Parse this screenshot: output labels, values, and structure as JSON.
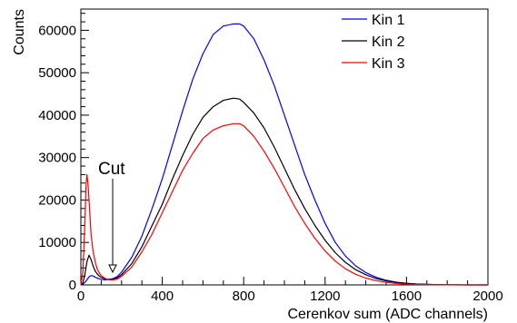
{
  "chart_data": {
    "type": "line",
    "title": "",
    "xlabel": "Cerenkov sum (ADC channels)",
    "ylabel": "Counts",
    "xlim": [
      0,
      2000
    ],
    "ylim": [
      0,
      65000
    ],
    "x_ticks": [
      0,
      400,
      800,
      1200,
      1600,
      2000
    ],
    "x_tick_labels": [
      "0",
      "400",
      "800",
      "1200",
      "1600",
      "2000"
    ],
    "y_ticks": [
      0,
      10000,
      20000,
      30000,
      40000,
      50000,
      60000
    ],
    "y_tick_labels": [
      "0",
      "10000",
      "20000",
      "30000",
      "40000",
      "50000",
      "60000"
    ],
    "grid": false,
    "legend_position": "top-right",
    "series": [
      {
        "name": "Kin 1",
        "color": "#0000ff",
        "x": [
          0,
          10,
          20,
          30,
          40,
          50,
          60,
          80,
          100,
          120,
          140,
          160,
          180,
          200,
          250,
          300,
          350,
          400,
          450,
          500,
          550,
          600,
          650,
          700,
          750,
          780,
          800,
          850,
          900,
          950,
          1000,
          1050,
          1100,
          1150,
          1200,
          1250,
          1300,
          1350,
          1400,
          1450,
          1500,
          1550,
          1600,
          1650,
          1700,
          1750,
          1800,
          1850,
          1900,
          1950,
          2000
        ],
        "y": [
          0,
          200,
          600,
          1200,
          1900,
          2200,
          2100,
          1600,
          1300,
          1200,
          1300,
          1500,
          2000,
          3000,
          6500,
          11500,
          18000,
          25000,
          33000,
          41000,
          48500,
          54500,
          59000,
          61000,
          61500,
          61500,
          61000,
          58000,
          53000,
          47000,
          40000,
          33000,
          26000,
          20000,
          14500,
          10000,
          6800,
          4500,
          2900,
          1800,
          1100,
          650,
          380,
          220,
          120,
          60,
          30,
          15,
          8,
          4,
          0
        ]
      },
      {
        "name": "Kin 2",
        "color": "#000000",
        "x": [
          0,
          10,
          20,
          30,
          40,
          50,
          60,
          70,
          80,
          90,
          100,
          120,
          140,
          160,
          180,
          200,
          250,
          300,
          350,
          400,
          450,
          500,
          550,
          600,
          650,
          700,
          750,
          780,
          800,
          850,
          900,
          950,
          1000,
          1050,
          1100,
          1150,
          1200,
          1250,
          1300,
          1350,
          1400,
          1450,
          1500,
          1550,
          1600,
          1650,
          1700,
          1750,
          1800,
          1900,
          2000
        ],
        "y": [
          0,
          500,
          2500,
          5500,
          7000,
          6000,
          4500,
          3300,
          2600,
          2100,
          1800,
          1400,
          1300,
          1400,
          1700,
          2400,
          5000,
          9000,
          14000,
          19000,
          25000,
          30500,
          35500,
          39500,
          42000,
          43500,
          44000,
          43800,
          43000,
          40500,
          37000,
          32500,
          27500,
          22500,
          18000,
          14000,
          10500,
          7600,
          5300,
          3600,
          2400,
          1500,
          950,
          580,
          350,
          200,
          110,
          60,
          30,
          8,
          0
        ]
      },
      {
        "name": "Kin 3",
        "color": "#ff0000",
        "x": [
          0,
          10,
          20,
          25,
          30,
          35,
          40,
          45,
          50,
          60,
          70,
          80,
          90,
          100,
          120,
          140,
          160,
          180,
          200,
          250,
          300,
          350,
          400,
          450,
          500,
          550,
          600,
          650,
          700,
          750,
          780,
          800,
          850,
          900,
          950,
          1000,
          1050,
          1100,
          1150,
          1200,
          1250,
          1300,
          1350,
          1400,
          1450,
          1500,
          1550,
          1600,
          1650,
          1700,
          1800,
          2000
        ],
        "y": [
          0,
          3000,
          15000,
          23000,
          26000,
          24000,
          20000,
          16000,
          12000,
          8000,
          5500,
          3800,
          2800,
          2200,
          1500,
          1200,
          1200,
          1400,
          2000,
          4200,
          7800,
          12000,
          17000,
          22000,
          27000,
          31000,
          34500,
          36500,
          37500,
          38000,
          38000,
          37500,
          35000,
          31500,
          27500,
          23000,
          18500,
          14500,
          11000,
          8000,
          5600,
          3800,
          2500,
          1600,
          1000,
          600,
          350,
          200,
          110,
          60,
          15,
          0
        ]
      }
    ],
    "annotations": [
      {
        "text": "Cut",
        "arrow_x": 150,
        "arrow_y": 2000
      }
    ]
  }
}
